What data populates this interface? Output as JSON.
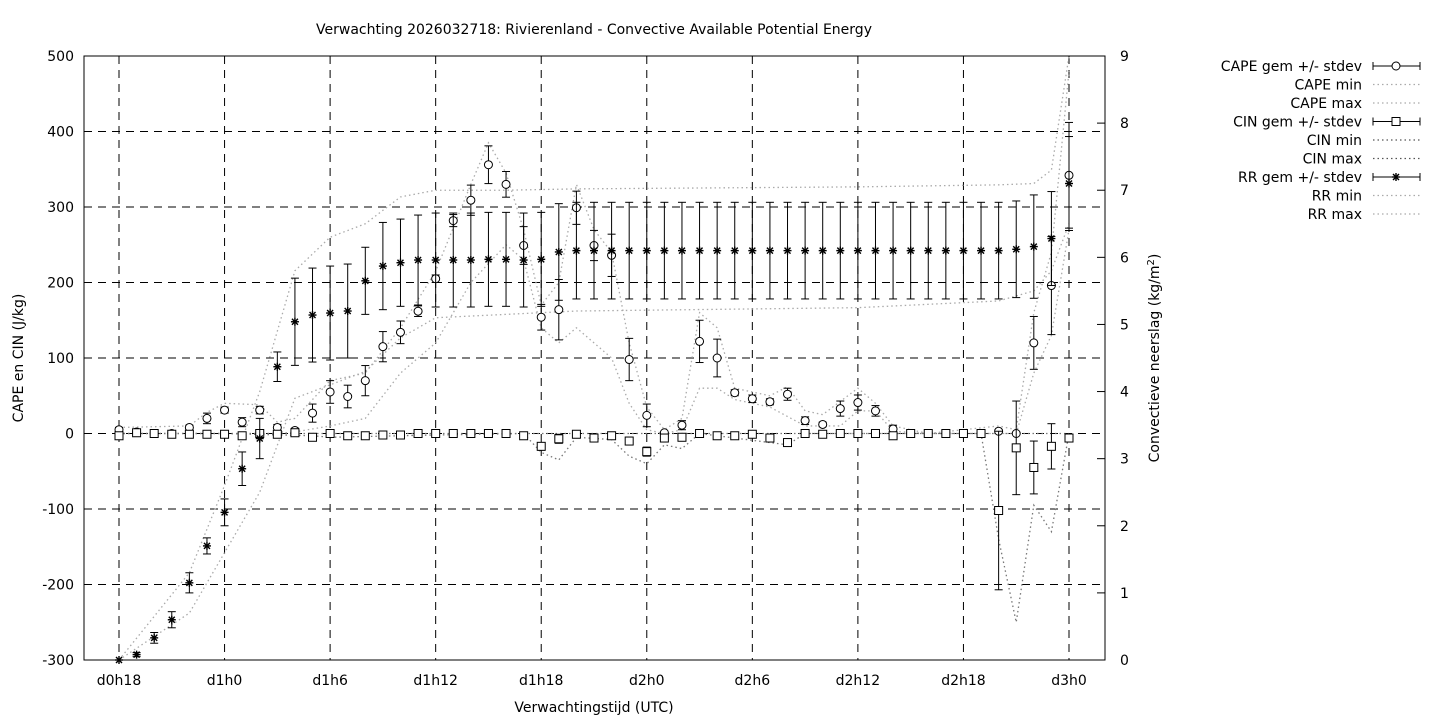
{
  "chart_data": {
    "type": "line",
    "title": "Verwachting 2026032718: Rivierenland - Convective Available Potential Energy",
    "xlabel": "Verwachtingstijd (UTC)",
    "ylabel": "CAPE en CIN (J/kg)",
    "y2label_main": "Convectieve neerslag (kg/m",
    "y2label_sup": "2",
    "y2label_end": ")",
    "xlim_hours": [
      16,
      74
    ],
    "ylim": [
      -300,
      500
    ],
    "y2lim": [
      0,
      9
    ],
    "grid": true,
    "legend_position": "outside-right",
    "x_ticks": [
      {
        "hour": 18,
        "label": "d0h18"
      },
      {
        "hour": 24,
        "label": "d1h0"
      },
      {
        "hour": 30,
        "label": "d1h6"
      },
      {
        "hour": 36,
        "label": "d1h12"
      },
      {
        "hour": 42,
        "label": "d1h18"
      },
      {
        "hour": 48,
        "label": "d2h0"
      },
      {
        "hour": 54,
        "label": "d2h6"
      },
      {
        "hour": 60,
        "label": "d2h12"
      },
      {
        "hour": 66,
        "label": "d2h18"
      },
      {
        "hour": 72,
        "label": "d3h0"
      }
    ],
    "y_ticks": [
      "-300",
      "-200",
      "-100",
      "0",
      "100",
      "200",
      "300",
      "400",
      "500"
    ],
    "y2_ticks": [
      "0",
      "1",
      "2",
      "3",
      "4",
      "5",
      "6",
      "7",
      "8",
      "9"
    ],
    "hours": [
      18,
      19,
      20,
      21,
      22,
      23,
      24,
      25,
      26,
      27,
      28,
      29,
      30,
      31,
      32,
      33,
      34,
      35,
      36,
      37,
      38,
      39,
      40,
      41,
      42,
      43,
      44,
      45,
      46,
      47,
      48,
      49,
      50,
      51,
      52,
      53,
      54,
      55,
      56,
      57,
      58,
      59,
      60,
      61,
      62,
      63,
      64,
      65,
      66,
      67,
      68,
      69,
      70,
      71,
      72
    ],
    "series": [
      {
        "name": "CAPE gem +/- stdev",
        "axis": "left",
        "marker": "circle",
        "values": [
          5,
          2,
          0,
          0,
          8,
          20,
          31,
          15,
          31,
          8,
          4,
          27,
          55,
          49,
          70,
          115,
          134,
          162,
          205,
          282,
          309,
          356,
          330,
          249,
          154,
          164,
          299,
          249,
          236,
          98,
          24,
          1,
          11,
          122,
          100,
          54,
          46,
          42,
          52,
          17,
          12,
          33,
          41,
          30,
          6,
          0,
          0,
          0,
          0,
          0,
          3,
          0,
          120,
          196,
          342
        ],
        "stdev": [
          3,
          2,
          2,
          2,
          3,
          7,
          4,
          6,
          5,
          4,
          3,
          12,
          15,
          15,
          20,
          20,
          15,
          7,
          5,
          8,
          20,
          25,
          17,
          25,
          17,
          40,
          22,
          20,
          28,
          28,
          15,
          2,
          6,
          28,
          25,
          4,
          5,
          4,
          8,
          5,
          3,
          10,
          10,
          7,
          5,
          0,
          0,
          0,
          0,
          0,
          2,
          0,
          35,
          65,
          70
        ]
      },
      {
        "name": "CAPE min",
        "axis": "left",
        "style": "dotted",
        "x": [
          18,
          22,
          24,
          26,
          27,
          28,
          30,
          32,
          34,
          36,
          38,
          40,
          41,
          42,
          43,
          44,
          46,
          47,
          48,
          49,
          50,
          51,
          52,
          53,
          55,
          57,
          59,
          60,
          61,
          62,
          64,
          68,
          69,
          70,
          71,
          72
        ],
        "values": [
          0,
          0,
          0,
          0,
          0,
          2,
          10,
          20,
          80,
          120,
          200,
          250,
          230,
          140,
          120,
          140,
          100,
          40,
          5,
          0,
          5,
          60,
          60,
          45,
          35,
          10,
          10,
          30,
          30,
          3,
          0,
          0,
          0,
          80,
          130,
          270
        ]
      },
      {
        "name": "CAPE max",
        "axis": "left",
        "style": "dotted",
        "x": [
          18,
          22,
          23,
          24,
          26,
          27,
          28,
          30,
          32,
          34,
          36,
          38,
          39,
          40,
          41,
          42,
          43,
          44,
          45,
          46,
          47,
          48,
          49,
          50,
          51,
          52,
          53,
          55,
          56,
          57,
          58,
          60,
          61,
          62,
          64,
          68,
          69,
          70,
          71,
          72
        ],
        "values": [
          8,
          10,
          28,
          40,
          38,
          15,
          20,
          70,
          80,
          140,
          215,
          330,
          385,
          345,
          270,
          170,
          200,
          330,
          270,
          240,
          120,
          35,
          5,
          20,
          160,
          140,
          60,
          50,
          62,
          30,
          25,
          60,
          40,
          10,
          0,
          10,
          5,
          160,
          240,
          480
        ]
      },
      {
        "name": "CIN gem +/- stdev",
        "axis": "left",
        "marker": "square",
        "values": [
          -3,
          1,
          0,
          -1,
          -1,
          -1,
          -1,
          -3,
          0,
          -1,
          1,
          -5,
          0,
          -3,
          -3,
          -2,
          -2,
          0,
          0,
          0,
          0,
          0,
          0,
          -3,
          -17,
          -7,
          -1,
          -6,
          -3,
          -10,
          -24,
          -6,
          -5,
          0,
          -3,
          -3,
          -1,
          -6,
          -12,
          0,
          -1,
          0,
          0,
          0,
          -3,
          0,
          0,
          0,
          0,
          0,
          -102,
          -19,
          -45,
          -17,
          -6
        ],
        "stdev": [
          1,
          1,
          1,
          1,
          1,
          1,
          1,
          1,
          1,
          1,
          1,
          1,
          1,
          1,
          1,
          1,
          1,
          1,
          1,
          1,
          1,
          1,
          1,
          1,
          5,
          6,
          1,
          1,
          1,
          5,
          6,
          1,
          4,
          1,
          1,
          1,
          1,
          1,
          5,
          1,
          1,
          1,
          1,
          1,
          1,
          1,
          1,
          1,
          1,
          1,
          105,
          62,
          35,
          30,
          5
        ]
      },
      {
        "name": "CIN min",
        "axis": "left",
        "style": "dotted",
        "x": [
          18,
          24,
          29,
          30,
          36,
          41,
          42,
          43,
          44,
          46,
          47,
          48,
          49,
          50,
          51,
          56,
          57,
          62,
          66,
          67,
          68,
          69,
          70,
          71,
          72
        ],
        "values": [
          0,
          0,
          -3,
          -5,
          -2,
          0,
          -25,
          -35,
          -5,
          -8,
          -30,
          -40,
          -15,
          -20,
          0,
          -15,
          0,
          0,
          0,
          0,
          -140,
          -250,
          -95,
          -130,
          0
        ]
      },
      {
        "name": "CIN max",
        "axis": "left",
        "style": "dotted",
        "x": [
          18,
          72
        ],
        "values": [
          0,
          0
        ]
      },
      {
        "name": "RR gem +/- stdev",
        "axis": "right",
        "marker": "star",
        "values": [
          0,
          0.08,
          0.33,
          0.6,
          1.15,
          1.7,
          2.2,
          2.85,
          3.3,
          4.37,
          5.04,
          5.14,
          5.17,
          5.2,
          5.65,
          5.87,
          5.92,
          5.96,
          5.96,
          5.96,
          5.96,
          5.97,
          5.97,
          5.96,
          5.97,
          6.08,
          6.1,
          6.1,
          6.1,
          6.1,
          6.1,
          6.1,
          6.1,
          6.1,
          6.1,
          6.1,
          6.1,
          6.1,
          6.1,
          6.1,
          6.1,
          6.1,
          6.1,
          6.1,
          6.1,
          6.1,
          6.1,
          6.1,
          6.1,
          6.1,
          6.1,
          6.12,
          6.16,
          6.28,
          7.1
        ],
        "stdev": [
          0,
          0.03,
          0.08,
          0.12,
          0.15,
          0.12,
          0.2,
          0.25,
          0.3,
          0.22,
          0.65,
          0.7,
          0.7,
          0.7,
          0.5,
          0.65,
          0.65,
          0.67,
          0.7,
          0.7,
          0.7,
          0.7,
          0.7,
          0.7,
          0.7,
          0.72,
          0.72,
          0.72,
          0.72,
          0.72,
          0.72,
          0.72,
          0.72,
          0.72,
          0.72,
          0.72,
          0.72,
          0.72,
          0.72,
          0.72,
          0.72,
          0.72,
          0.72,
          0.72,
          0.72,
          0.72,
          0.72,
          0.72,
          0.72,
          0.72,
          0.72,
          0.72,
          0.77,
          0.7,
          0.7
        ]
      },
      {
        "name": "RR min",
        "axis": "right",
        "style": "dotted",
        "x": [
          18,
          22,
          24,
          26,
          28,
          30,
          32,
          34,
          36,
          40,
          44,
          60,
          68,
          70,
          71,
          72
        ],
        "values": [
          0,
          0.7,
          1.6,
          2.5,
          3.9,
          4.1,
          4.3,
          4.8,
          5.1,
          5.15,
          5.2,
          5.25,
          5.35,
          5.5,
          5.8,
          6.5
        ]
      },
      {
        "name": "RR max",
        "axis": "right",
        "style": "dotted",
        "x": [
          18,
          22,
          24,
          26,
          28,
          30,
          32,
          34,
          36,
          40,
          44,
          60,
          68,
          70,
          71,
          72
        ],
        "values": [
          0,
          1.3,
          2.6,
          4.0,
          5.8,
          6.3,
          6.5,
          6.9,
          7.0,
          7.0,
          7.02,
          7.05,
          7.08,
          7.1,
          7.3,
          9.0
        ]
      }
    ]
  }
}
